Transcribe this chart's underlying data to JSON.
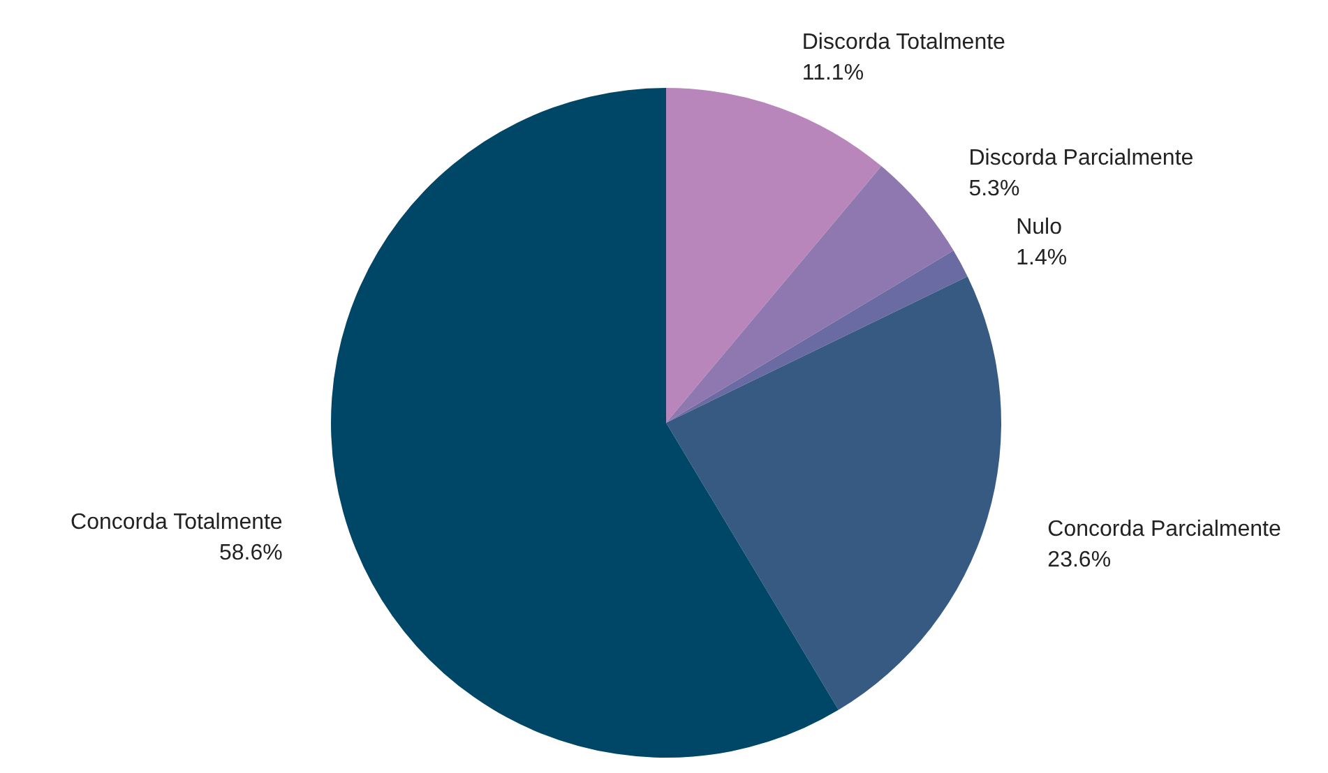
{
  "chart_data": {
    "type": "pie",
    "categories": [
      "Discorda Totalmente",
      "Discorda Parcialmente",
      "Nulo",
      "Concorda Parcialmente",
      "Concorda Totalmente"
    ],
    "values": [
      11.1,
      5.3,
      1.4,
      23.6,
      58.6
    ],
    "value_labels": [
      "11.1%",
      "5.3%",
      "1.4%",
      "23.6%",
      "58.6%"
    ],
    "colors": [
      "#b886bb",
      "#8f78b0",
      "#6b6ba3",
      "#375a82",
      "#004666"
    ]
  }
}
